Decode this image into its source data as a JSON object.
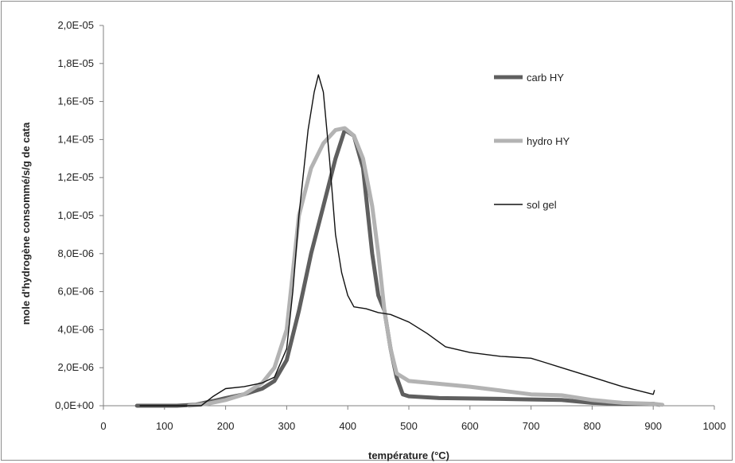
{
  "chart_data": {
    "type": "line",
    "xlabel": "température (°C)",
    "ylabel": "mole d'hydrogène consommé/s/g de cata",
    "xlim": [
      0,
      1000
    ],
    "ylim": [
      0,
      2e-05
    ],
    "x_ticks": [
      "0",
      "100",
      "200",
      "300",
      "400",
      "500",
      "600",
      "700",
      "800",
      "900",
      "1000"
    ],
    "y_ticks": [
      "0,0E+00",
      "2,0E-06",
      "4,0E-06",
      "6,0E-06",
      "8,0E-06",
      "1,0E-05",
      "1,2E-05",
      "1,4E-05",
      "1,6E-05",
      "1,8E-05",
      "2,0E-05"
    ],
    "grid": false,
    "legend_position": "right",
    "series": [
      {
        "name": "carb HY",
        "color": "#5f5f5f",
        "points": [
          [
            55,
            0.0
          ],
          [
            80,
            0.0
          ],
          [
            120,
            0.0
          ],
          [
            150,
            5e-08
          ],
          [
            180,
            2.5e-07
          ],
          [
            200,
            4e-07
          ],
          [
            230,
            6e-07
          ],
          [
            260,
            9e-07
          ],
          [
            280,
            1.3e-06
          ],
          [
            300,
            2.4e-06
          ],
          [
            320,
            5e-06
          ],
          [
            340,
            8e-06
          ],
          [
            360,
            1.05e-05
          ],
          [
            380,
            1.3e-05
          ],
          [
            395,
            1.45e-05
          ],
          [
            410,
            1.42e-05
          ],
          [
            425,
            1.25e-05
          ],
          [
            440,
            8e-06
          ],
          [
            450,
            5.8e-06
          ],
          [
            460,
            5e-06
          ],
          [
            470,
            3e-06
          ],
          [
            480,
            1.5e-06
          ],
          [
            490,
            6e-07
          ],
          [
            500,
            5e-07
          ],
          [
            550,
            4e-07
          ],
          [
            600,
            3.8e-07
          ],
          [
            650,
            3.6e-07
          ],
          [
            700,
            3.3e-07
          ],
          [
            750,
            3e-07
          ],
          [
            800,
            1.5e-07
          ],
          [
            850,
            1e-07
          ],
          [
            900,
            1e-07
          ],
          [
            910,
            5e-08
          ]
        ]
      },
      {
        "name": "hydro HY",
        "color": "#b3b3b3",
        "points": [
          [
            140,
            0.0
          ],
          [
            170,
            1e-07
          ],
          [
            200,
            3e-07
          ],
          [
            230,
            6e-07
          ],
          [
            260,
            1.2e-06
          ],
          [
            280,
            2e-06
          ],
          [
            300,
            4e-06
          ],
          [
            310,
            7e-06
          ],
          [
            320,
            1e-05
          ],
          [
            340,
            1.25e-05
          ],
          [
            360,
            1.38e-05
          ],
          [
            380,
            1.45e-05
          ],
          [
            395,
            1.46e-05
          ],
          [
            410,
            1.42e-05
          ],
          [
            425,
            1.3e-05
          ],
          [
            440,
            1.05e-05
          ],
          [
            450,
            8e-06
          ],
          [
            460,
            5e-06
          ],
          [
            470,
            3e-06
          ],
          [
            480,
            1.7e-06
          ],
          [
            500,
            1.3e-06
          ],
          [
            550,
            1.15e-06
          ],
          [
            600,
            1e-06
          ],
          [
            650,
            8e-07
          ],
          [
            700,
            6e-07
          ],
          [
            750,
            5.5e-07
          ],
          [
            800,
            3e-07
          ],
          [
            850,
            1.5e-07
          ],
          [
            900,
            1e-07
          ],
          [
            915,
            5e-08
          ]
        ]
      },
      {
        "name": "sol gel",
        "color": "#111111",
        "points": [
          [
            60,
            0.0
          ],
          [
            100,
            0.0
          ],
          [
            160,
            0.0
          ],
          [
            180,
            5e-07
          ],
          [
            200,
            9e-07
          ],
          [
            230,
            1e-06
          ],
          [
            260,
            1.2e-06
          ],
          [
            280,
            1.5e-06
          ],
          [
            300,
            3e-06
          ],
          [
            310,
            6e-06
          ],
          [
            320,
            1e-05
          ],
          [
            335,
            1.45e-05
          ],
          [
            345,
            1.65e-05
          ],
          [
            352,
            1.74e-05
          ],
          [
            360,
            1.65e-05
          ],
          [
            370,
            1.3e-05
          ],
          [
            380,
            9e-06
          ],
          [
            390,
            7e-06
          ],
          [
            400,
            5.8e-06
          ],
          [
            410,
            5.2e-06
          ],
          [
            430,
            5.1e-06
          ],
          [
            450,
            4.9e-06
          ],
          [
            470,
            4.8e-06
          ],
          [
            500,
            4.4e-06
          ],
          [
            530,
            3.8e-06
          ],
          [
            560,
            3.1e-06
          ],
          [
            600,
            2.8e-06
          ],
          [
            650,
            2.6e-06
          ],
          [
            700,
            2.5e-06
          ],
          [
            720,
            2.3e-06
          ],
          [
            750,
            2e-06
          ],
          [
            800,
            1.5e-06
          ],
          [
            850,
            1e-06
          ],
          [
            900,
            6e-07
          ],
          [
            902,
            8e-07
          ]
        ]
      }
    ]
  }
}
